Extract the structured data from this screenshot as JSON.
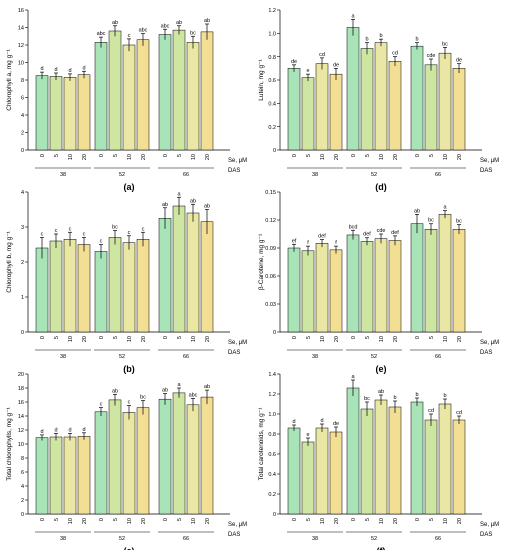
{
  "figure": {
    "palette": [
      "#a8e4b8",
      "#cfe6a3",
      "#e9e7a3",
      "#f3df93"
    ],
    "se_label": "Se, μM",
    "das_label": "DAS",
    "se_levels": [
      "0",
      "5",
      "10",
      "20"
    ],
    "das_groups": [
      "38",
      "52",
      "66"
    ]
  },
  "chart_data": [
    {
      "type": "bar",
      "panel_label": "(a)",
      "ylabel": "Chlorophyll a, mg g⁻¹",
      "ylim": [
        0,
        16
      ],
      "yticks": [
        "0",
        "2",
        "4",
        "6",
        "8",
        "10",
        "12",
        "14",
        "16"
      ],
      "categories": [
        "38",
        "52",
        "66"
      ],
      "series_labels": [
        "0",
        "5",
        "10",
        "20"
      ],
      "values": [
        [
          8.5,
          8.4,
          8.3,
          8.6
        ],
        [
          12.3,
          13.6,
          12.0,
          12.6
        ],
        [
          13.2,
          13.7,
          12.3,
          13.5
        ]
      ],
      "errors": [
        [
          0.4,
          0.4,
          0.4,
          0.4
        ],
        [
          0.6,
          0.6,
          0.7,
          0.7
        ],
        [
          0.6,
          0.5,
          0.7,
          0.9
        ]
      ],
      "letters": [
        [
          "d",
          "d",
          "d",
          "d"
        ],
        [
          "abc",
          "ab",
          "c",
          "abc"
        ],
        [
          "abc",
          "ab",
          "bc",
          "ab"
        ]
      ]
    },
    {
      "type": "bar",
      "panel_label": "(d)",
      "ylabel": "Lutein, mg g⁻¹",
      "ylim": [
        0,
        1.2
      ],
      "yticks": [
        "0",
        "0.2",
        "0.4",
        "0.6",
        "0.8",
        "1.0",
        "1.2"
      ],
      "categories": [
        "38",
        "52",
        "66"
      ],
      "series_labels": [
        "0",
        "5",
        "10",
        "20"
      ],
      "values": [
        [
          0.7,
          0.62,
          0.74,
          0.65
        ],
        [
          1.05,
          0.87,
          0.92,
          0.76
        ],
        [
          0.89,
          0.73,
          0.83,
          0.7
        ]
      ],
      "errors": [
        [
          0.03,
          0.03,
          0.05,
          0.05
        ],
        [
          0.07,
          0.05,
          0.03,
          0.04
        ],
        [
          0.03,
          0.05,
          0.05,
          0.04
        ]
      ],
      "letters": [
        [
          "de",
          "e",
          "cd",
          "de"
        ],
        [
          "a",
          "b",
          "b",
          "cd"
        ],
        [
          "b",
          "cde",
          "bc",
          "de"
        ]
      ]
    },
    {
      "type": "bar",
      "panel_label": "(b)",
      "ylabel": "Chlorophyll b, mg g⁻¹",
      "ylim": [
        0,
        4
      ],
      "yticks": [
        "0",
        "1",
        "2",
        "3",
        "4"
      ],
      "categories": [
        "38",
        "52",
        "66"
      ],
      "series_labels": [
        "0",
        "5",
        "10",
        "20"
      ],
      "values": [
        [
          2.4,
          2.6,
          2.65,
          2.5
        ],
        [
          2.3,
          2.7,
          2.55,
          2.65
        ],
        [
          3.25,
          3.6,
          3.4,
          3.15
        ]
      ],
      "errors": [
        [
          0.3,
          0.2,
          0.2,
          0.2
        ],
        [
          0.2,
          0.2,
          0.2,
          0.2
        ],
        [
          0.3,
          0.25,
          0.25,
          0.35
        ]
      ],
      "letters": [
        [
          "c",
          "c",
          "c",
          "c"
        ],
        [
          "c",
          "bc",
          "c",
          "c"
        ],
        [
          "ab",
          "a",
          "ab",
          "ab"
        ]
      ]
    },
    {
      "type": "bar",
      "panel_label": "(e)",
      "ylabel": "β-Carotene, mg g⁻¹",
      "ylim": [
        0,
        0.15
      ],
      "yticks": [
        "0",
        "0.03",
        "0.06",
        "0.09",
        "0.12",
        "0.15"
      ],
      "categories": [
        "38",
        "52",
        "66"
      ],
      "series_labels": [
        "0",
        "5",
        "10",
        "20"
      ],
      "values": [
        [
          0.09,
          0.087,
          0.095,
          0.088
        ],
        [
          0.104,
          0.097,
          0.1,
          0.098
        ],
        [
          0.116,
          0.11,
          0.126,
          0.11
        ]
      ],
      "errors": [
        [
          0.004,
          0.005,
          0.004,
          0.004
        ],
        [
          0.005,
          0.004,
          0.005,
          0.005
        ],
        [
          0.01,
          0.006,
          0.004,
          0.005
        ]
      ],
      "letters": [
        [
          "ef",
          "f",
          "def",
          "f"
        ],
        [
          "bcd",
          "def",
          "cde",
          "def"
        ],
        [
          "ab",
          "bc",
          "a",
          "bc"
        ]
      ]
    },
    {
      "type": "bar",
      "panel_label": "(c)",
      "ylabel": "Total chlorophylls, mg g⁻¹",
      "ylim": [
        0,
        20
      ],
      "yticks": [
        "0",
        "2",
        "4",
        "6",
        "8",
        "10",
        "12",
        "14",
        "16",
        "18",
        "20"
      ],
      "categories": [
        "38",
        "52",
        "66"
      ],
      "series_labels": [
        "0",
        "5",
        "10",
        "20"
      ],
      "values": [
        [
          10.9,
          11.0,
          11.0,
          11.1
        ],
        [
          14.6,
          16.3,
          14.5,
          15.2
        ],
        [
          16.4,
          17.3,
          15.6,
          16.7
        ]
      ],
      "errors": [
        [
          0.4,
          0.5,
          0.5,
          0.5
        ],
        [
          0.6,
          0.8,
          1.0,
          1.0
        ],
        [
          0.8,
          0.7,
          0.9,
          1.0
        ]
      ],
      "letters": [
        [
          "d",
          "d",
          "d",
          "d"
        ],
        [
          "c",
          "ab",
          "c",
          "bc"
        ],
        [
          "ab",
          "a",
          "abc",
          "ab"
        ]
      ]
    },
    {
      "type": "bar",
      "panel_label": "(f)",
      "ylabel": "Total carotenoids, mg g⁻¹",
      "ylim": [
        0,
        1.4
      ],
      "yticks": [
        "0",
        "0.2",
        "0.4",
        "0.6",
        "0.8",
        "1.0",
        "1.2",
        "1.4"
      ],
      "categories": [
        "38",
        "52",
        "66"
      ],
      "series_labels": [
        "0",
        "5",
        "10",
        "20"
      ],
      "values": [
        [
          0.86,
          0.72,
          0.86,
          0.82
        ],
        [
          1.26,
          1.05,
          1.14,
          1.07
        ],
        [
          1.12,
          0.94,
          1.1,
          0.94
        ]
      ],
      "errors": [
        [
          0.03,
          0.04,
          0.04,
          0.05
        ],
        [
          0.08,
          0.07,
          0.05,
          0.06
        ],
        [
          0.04,
          0.06,
          0.05,
          0.04
        ]
      ],
      "letters": [
        [
          "d",
          "e",
          "d",
          "de"
        ],
        [
          "a",
          "bc",
          "ab",
          "b"
        ],
        [
          "b",
          "cd",
          "b",
          "cd"
        ]
      ]
    }
  ]
}
